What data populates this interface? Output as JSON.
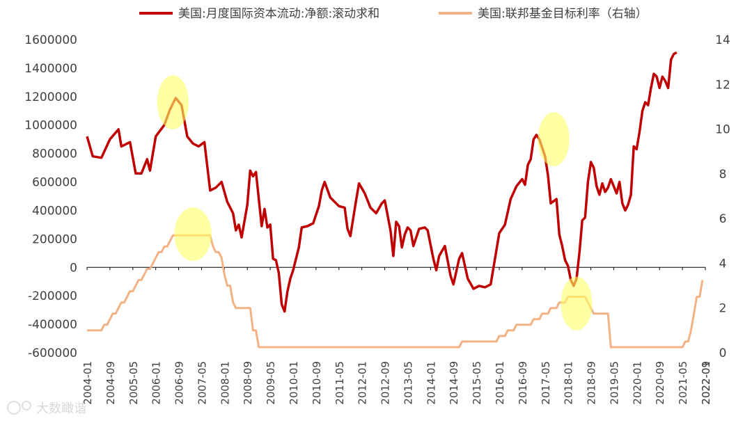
{
  "chart_data": {
    "type": "line",
    "x_labels": [
      "2004-01",
      "2004-09",
      "2005-05",
      "2006-01",
      "2006-09",
      "2007-05",
      "2008-01",
      "2008-09",
      "2009-05",
      "2010-01",
      "2010-09",
      "2011-05",
      "2012-01",
      "2012-09",
      "2013-05",
      "2014-01",
      "2014-09",
      "2015-05",
      "2016-01",
      "2016-09",
      "2017-05",
      "2018-01",
      "2018-09",
      "2019-05",
      "2020-01",
      "2020-09",
      "2021-05",
      "2022-01",
      "2022-09"
    ],
    "y_left": {
      "min": -600000,
      "max": 1600000,
      "ticks": [
        "1600000",
        "1400000",
        "1200000",
        "1000000",
        "800000",
        "600000",
        "400000",
        "200000",
        "0",
        "-200000",
        "-400000",
        "-600000"
      ]
    },
    "y_right": {
      "min": 0,
      "max": 14,
      "ticks": [
        "14",
        "12",
        "10",
        "8",
        "6",
        "4",
        "2",
        "0"
      ]
    },
    "legend_position": "top",
    "series": [
      {
        "name": "美国:月度国际资本流动:净额:滚动求和",
        "axis": "left",
        "color": "#C00000",
        "values": [
          [
            0,
            920000
          ],
          [
            2,
            780000
          ],
          [
            5,
            770000
          ],
          [
            8,
            900000
          ],
          [
            11,
            970000
          ],
          [
            12,
            850000
          ],
          [
            15,
            880000
          ],
          [
            17,
            660000
          ],
          [
            19,
            660000
          ],
          [
            21,
            760000
          ],
          [
            22,
            680000
          ],
          [
            24,
            920000
          ],
          [
            27,
            1000000
          ],
          [
            29,
            1110000
          ],
          [
            31,
            1190000
          ],
          [
            33,
            1140000
          ],
          [
            35,
            920000
          ],
          [
            37,
            870000
          ],
          [
            39,
            850000
          ],
          [
            41,
            880000
          ],
          [
            43,
            540000
          ],
          [
            45,
            560000
          ],
          [
            47,
            600000
          ],
          [
            49,
            460000
          ],
          [
            51,
            380000
          ],
          [
            52,
            260000
          ],
          [
            53,
            300000
          ],
          [
            54,
            210000
          ],
          [
            56,
            440000
          ],
          [
            57,
            680000
          ],
          [
            58,
            640000
          ],
          [
            59,
            670000
          ],
          [
            61,
            290000
          ],
          [
            62,
            410000
          ],
          [
            63,
            280000
          ],
          [
            64,
            300000
          ],
          [
            65,
            60000
          ],
          [
            66,
            50000
          ],
          [
            67,
            -40000
          ],
          [
            68,
            -260000
          ],
          [
            69,
            -310000
          ],
          [
            70,
            -170000
          ],
          [
            71,
            -80000
          ],
          [
            72,
            -20000
          ],
          [
            74,
            140000
          ],
          [
            75,
            280000
          ],
          [
            77,
            290000
          ],
          [
            79,
            310000
          ],
          [
            81,
            430000
          ],
          [
            82,
            540000
          ],
          [
            83,
            600000
          ],
          [
            85,
            490000
          ],
          [
            86,
            470000
          ],
          [
            88,
            430000
          ],
          [
            90,
            420000
          ],
          [
            91,
            270000
          ],
          [
            92,
            220000
          ],
          [
            94,
            470000
          ],
          [
            95,
            590000
          ],
          [
            97,
            520000
          ],
          [
            99,
            420000
          ],
          [
            101,
            380000
          ],
          [
            103,
            450000
          ],
          [
            104,
            470000
          ],
          [
            106,
            260000
          ],
          [
            107,
            80000
          ],
          [
            108,
            320000
          ],
          [
            109,
            290000
          ],
          [
            110,
            140000
          ],
          [
            111,
            230000
          ],
          [
            112,
            280000
          ],
          [
            113,
            260000
          ],
          [
            114,
            150000
          ],
          [
            116,
            270000
          ],
          [
            118,
            280000
          ],
          [
            119,
            260000
          ],
          [
            121,
            60000
          ],
          [
            122,
            -20000
          ],
          [
            123,
            80000
          ],
          [
            125,
            150000
          ],
          [
            127,
            -60000
          ],
          [
            128,
            -120000
          ],
          [
            130,
            60000
          ],
          [
            131,
            100000
          ],
          [
            133,
            -80000
          ],
          [
            135,
            -150000
          ],
          [
            137,
            -130000
          ],
          [
            139,
            -140000
          ],
          [
            141,
            -120000
          ],
          [
            142,
            0
          ],
          [
            144,
            240000
          ],
          [
            146,
            300000
          ],
          [
            148,
            480000
          ],
          [
            150,
            570000
          ],
          [
            152,
            620000
          ],
          [
            153,
            580000
          ],
          [
            154,
            720000
          ],
          [
            155,
            760000
          ],
          [
            156,
            900000
          ],
          [
            157,
            930000
          ],
          [
            158,
            900000
          ],
          [
            160,
            780000
          ],
          [
            161,
            650000
          ],
          [
            162,
            450000
          ],
          [
            164,
            480000
          ],
          [
            165,
            230000
          ],
          [
            166,
            150000
          ],
          [
            167,
            50000
          ],
          [
            168,
            10000
          ],
          [
            169,
            -90000
          ],
          [
            170,
            -130000
          ],
          [
            171,
            -80000
          ],
          [
            172,
            100000
          ],
          [
            173,
            330000
          ],
          [
            174,
            350000
          ],
          [
            175,
            600000
          ],
          [
            176,
            740000
          ],
          [
            177,
            700000
          ],
          [
            178,
            570000
          ],
          [
            179,
            510000
          ],
          [
            180,
            590000
          ],
          [
            181,
            530000
          ],
          [
            182,
            560000
          ],
          [
            183,
            620000
          ],
          [
            184,
            570000
          ],
          [
            185,
            520000
          ],
          [
            186,
            600000
          ],
          [
            187,
            450000
          ],
          [
            188,
            400000
          ],
          [
            189,
            440000
          ],
          [
            190,
            510000
          ],
          [
            191,
            850000
          ],
          [
            192,
            830000
          ],
          [
            193,
            950000
          ],
          [
            194,
            1100000
          ],
          [
            195,
            1160000
          ],
          [
            196,
            1140000
          ],
          [
            197,
            1260000
          ],
          [
            198,
            1360000
          ],
          [
            199,
            1340000
          ],
          [
            200,
            1260000
          ],
          [
            201,
            1340000
          ],
          [
            202,
            1310000
          ],
          [
            203,
            1260000
          ],
          [
            204,
            1460000
          ],
          [
            205,
            1500000
          ],
          [
            206,
            1510000
          ]
        ]
      },
      {
        "name": "美国:联邦基金目标利率（右轴）",
        "axis": "right",
        "color": "#F4B183",
        "values": [
          [
            0,
            1.0
          ],
          [
            5,
            1.0
          ],
          [
            6,
            1.25
          ],
          [
            7,
            1.25
          ],
          [
            8,
            1.5
          ],
          [
            9,
            1.75
          ],
          [
            10,
            1.75
          ],
          [
            11,
            2.0
          ],
          [
            12,
            2.25
          ],
          [
            13,
            2.25
          ],
          [
            14,
            2.5
          ],
          [
            15,
            2.75
          ],
          [
            16,
            2.75
          ],
          [
            17,
            3.0
          ],
          [
            18,
            3.25
          ],
          [
            19,
            3.25
          ],
          [
            20,
            3.5
          ],
          [
            21,
            3.75
          ],
          [
            22,
            3.75
          ],
          [
            23,
            4.0
          ],
          [
            24,
            4.25
          ],
          [
            25,
            4.5
          ],
          [
            26,
            4.5
          ],
          [
            27,
            4.75
          ],
          [
            28,
            4.75
          ],
          [
            29,
            5.0
          ],
          [
            30,
            5.25
          ],
          [
            31,
            5.25
          ],
          [
            42,
            5.25
          ],
          [
            43,
            5.25
          ],
          [
            44,
            4.75
          ],
          [
            45,
            4.5
          ],
          [
            46,
            4.5
          ],
          [
            47,
            4.25
          ],
          [
            48,
            3.5
          ],
          [
            49,
            3.0
          ],
          [
            50,
            3.0
          ],
          [
            51,
            2.25
          ],
          [
            52,
            2.0
          ],
          [
            57,
            2.0
          ],
          [
            58,
            1.0
          ],
          [
            59,
            1.0
          ],
          [
            60,
            0.25
          ],
          [
            130,
            0.25
          ],
          [
            131,
            0.5
          ],
          [
            143,
            0.5
          ],
          [
            144,
            0.75
          ],
          [
            146,
            0.75
          ],
          [
            147,
            1.0
          ],
          [
            149,
            1.0
          ],
          [
            150,
            1.25
          ],
          [
            155,
            1.25
          ],
          [
            156,
            1.5
          ],
          [
            158,
            1.5
          ],
          [
            159,
            1.75
          ],
          [
            161,
            1.75
          ],
          [
            162,
            2.0
          ],
          [
            164,
            2.0
          ],
          [
            165,
            2.25
          ],
          [
            167,
            2.25
          ],
          [
            168,
            2.5
          ],
          [
            174,
            2.5
          ],
          [
            175,
            2.25
          ],
          [
            176,
            2.0
          ],
          [
            177,
            1.75
          ],
          [
            182,
            1.75
          ],
          [
            183,
            0.25
          ],
          [
            208,
            0.25
          ],
          [
            209,
            0.5
          ],
          [
            210,
            0.5
          ],
          [
            211,
            1.0
          ],
          [
            212,
            1.75
          ],
          [
            213,
            2.5
          ],
          [
            214,
            2.5
          ],
          [
            215,
            3.25
          ]
        ]
      }
    ],
    "highlights": [
      {
        "series": 0,
        "x": 30,
        "y": 1160000,
        "rx_pts": 5.5,
        "ry_val": 190000
      },
      {
        "series": 1,
        "x": 37,
        "y": 5.3,
        "rx_pts": 6.5,
        "ry_val": 1.2
      },
      {
        "series": 0,
        "x": 163,
        "y": 900000,
        "rx_pts": 5.5,
        "ry_val": 190000
      },
      {
        "series": 1,
        "x": 171,
        "y": 2.2,
        "rx_pts": 5.5,
        "ry_val": 1.2
      }
    ],
    "x_count": 217
  },
  "watermark": "大数瞰谐"
}
